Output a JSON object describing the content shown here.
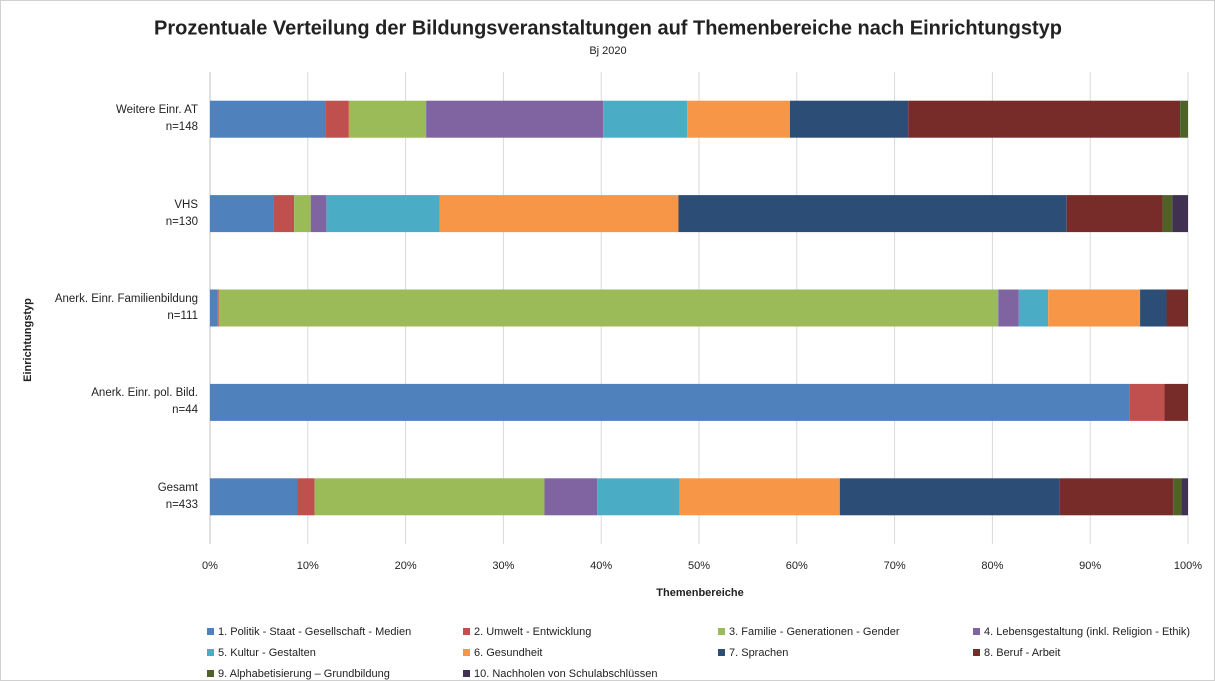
{
  "chart_data": {
    "type": "stacked_barh",
    "title": "Prozentuale Verteilung der Bildungsveranstaltungen auf Themenbereiche nach Einrichtungstyp",
    "subtitle": "Bj 2020",
    "x_label": "Themenbereiche",
    "y_label": "Einrichtungstyp",
    "categories": [
      "Weitere Einr. AT\nn=148",
      "VHS\nn=130",
      "Anerk. Einr. Familienbildung\nn=111",
      "Anerk. Einr. pol. Bild.\nn=44",
      "Gesamt\nn=433"
    ],
    "series": [
      {
        "name": "1. Politik - Staat - Gesellschaft - Medien",
        "color": "#4f81bd",
        "values": [
          11.8,
          6.5,
          0.8,
          94.0,
          8.9
        ]
      },
      {
        "name": "2. Umwelt - Entwicklung",
        "color": "#c0504d",
        "values": [
          2.4,
          2.1,
          0.1,
          3.6,
          1.8
        ]
      },
      {
        "name": "3. Familie - Generationen - Gender",
        "color": "#9bbb59",
        "values": [
          7.9,
          1.7,
          79.7,
          0,
          23.5
        ]
      },
      {
        "name": "4. Lebensgestaltung (inkl. Religion - Ethik)",
        "color": "#8064a2",
        "values": [
          18.1,
          1.6,
          2.1,
          0,
          5.4
        ]
      },
      {
        "name": "5. Kultur - Gestalten",
        "color": "#4bacc6",
        "values": [
          8.6,
          11.6,
          3.0,
          0,
          8.4
        ]
      },
      {
        "name": "6. Gesundheit",
        "color": "#f79646",
        "values": [
          10.5,
          24.4,
          9.4,
          0,
          16.4
        ]
      },
      {
        "name": "7. Sprachen",
        "color": "#2c4d75",
        "values": [
          12.1,
          39.7,
          2.7,
          0,
          22.5
        ]
      },
      {
        "name": "8. Beruf  - Arbeit",
        "color": "#772c2a",
        "values": [
          27.8,
          9.8,
          2.1,
          2.4,
          11.6
        ]
      },
      {
        "name": "9. Alphabetisierung – Grundbildung",
        "color": "#4f6228",
        "values": [
          0.8,
          1.0,
          0,
          0,
          0.8
        ]
      },
      {
        "name": "10. Nachholen von Schulabschlüssen",
        "color": "#403152",
        "values": [
          0,
          1.6,
          0.1,
          0,
          0.7
        ]
      }
    ],
    "xlim": [
      0,
      100
    ],
    "xticks": [
      {
        "value": 0,
        "label": "0%"
      },
      {
        "value": 10,
        "label": "10%"
      },
      {
        "value": 20,
        "label": "20%"
      },
      {
        "value": 30,
        "label": "30%"
      },
      {
        "value": 40,
        "label": "40%"
      },
      {
        "value": 50,
        "label": "50%"
      },
      {
        "value": 60,
        "label": "60%"
      },
      {
        "value": 70,
        "label": "70%"
      },
      {
        "value": 80,
        "label": "80%"
      },
      {
        "value": 90,
        "label": "90%"
      },
      {
        "value": 100,
        "label": "100%"
      }
    ],
    "grid": true,
    "legend": "bottom"
  }
}
